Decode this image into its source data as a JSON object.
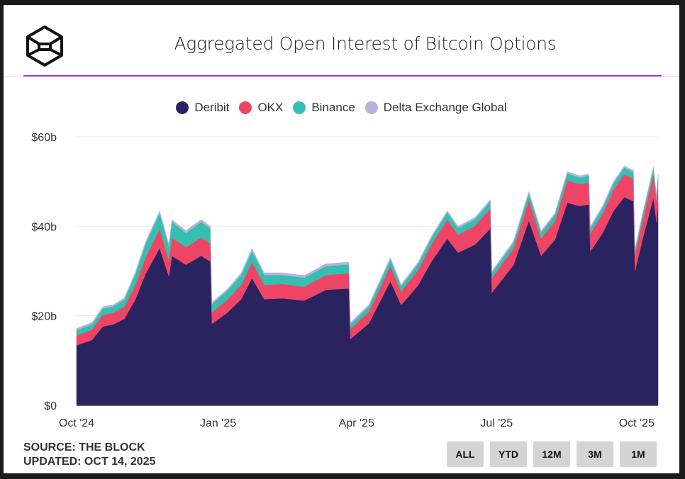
{
  "title": "Aggregated Open Interest of Bitcoin Options",
  "footer": {
    "source": "SOURCE: THE BLOCK",
    "updated": "UPDATED: OCT 14, 2025"
  },
  "range_buttons": [
    "ALL",
    "YTD",
    "12M",
    "3M",
    "1M"
  ],
  "chart_data": {
    "type": "area",
    "stacked": true,
    "title": "Aggregated Open Interest of Bitcoin Options",
    "xlabel": "",
    "ylabel": "",
    "ylim": [
      0,
      60
    ],
    "xlim": [
      "2024-10-01",
      "2025-10-14"
    ],
    "grid": true,
    "legend_position": "top-center",
    "y_ticks": [
      {
        "value": 0,
        "label": "$0"
      },
      {
        "value": 20,
        "label": "$20b"
      },
      {
        "value": 40,
        "label": "$40b"
      },
      {
        "value": 60,
        "label": "$60b"
      }
    ],
    "x_ticks": [
      {
        "date": "2024-10-01",
        "label": "Oct '24"
      },
      {
        "date": "2025-01-01",
        "label": "Jan '25"
      },
      {
        "date": "2025-04-01",
        "label": "Apr '25"
      },
      {
        "date": "2025-07-01",
        "label": "Jul '25"
      },
      {
        "date": "2025-10-01",
        "label": "Oct '25"
      }
    ],
    "x": [
      "2024-10-01",
      "2024-10-11",
      "2024-10-18",
      "2024-10-25",
      "2024-11-01",
      "2024-11-08",
      "2024-11-15",
      "2024-11-24",
      "2024-11-30",
      "2024-12-02",
      "2024-12-11",
      "2024-12-21",
      "2024-12-27",
      "2024-12-28",
      "2025-01-07",
      "2025-01-16",
      "2025-01-23",
      "2025-01-31",
      "2025-02-12",
      "2025-02-26",
      "2025-03-12",
      "2025-03-27",
      "2025-03-28",
      "2025-04-09",
      "2025-04-23",
      "2025-04-30",
      "2025-05-11",
      "2025-05-20",
      "2025-05-30",
      "2025-06-06",
      "2025-06-17",
      "2025-06-27",
      "2025-06-28",
      "2025-07-12",
      "2025-07-22",
      "2025-07-30",
      "2025-08-08",
      "2025-08-16",
      "2025-08-24",
      "2025-08-30",
      "2025-08-31",
      "2025-09-08",
      "2025-09-15",
      "2025-09-22",
      "2025-09-28",
      "2025-09-29",
      "2025-10-04",
      "2025-10-11",
      "2025-10-13",
      "2025-10-14"
    ],
    "series": [
      {
        "name": "Deribit",
        "color": "#2b2360",
        "values": [
          13.4,
          14.6,
          17.6,
          18.1,
          19.3,
          23.5,
          29.5,
          35.1,
          28.8,
          33.4,
          31.4,
          33.4,
          32.1,
          18.2,
          20.7,
          23.7,
          28.4,
          23.7,
          23.9,
          23.4,
          25.8,
          26.1,
          14.8,
          18.3,
          27.7,
          22.4,
          26.8,
          32.3,
          37.2,
          34.1,
          35.9,
          39.5,
          25.2,
          31.3,
          41.3,
          33.4,
          37,
          45.3,
          44.5,
          44.9,
          34.4,
          38.5,
          43.4,
          46.5,
          45.6,
          30,
          37.2,
          46.4,
          40.8,
          45.1
        ]
      },
      {
        "name": "OKX",
        "color": "#ef4565",
        "values": [
          2.2,
          2.3,
          2.6,
          2.6,
          2.7,
          3.2,
          3.7,
          4.3,
          3.7,
          4.1,
          3.9,
          4.1,
          4,
          2.6,
          2.9,
          3.2,
          3.6,
          3.2,
          3.2,
          3.1,
          3.3,
          3.4,
          2.3,
          2.6,
          3.4,
          3,
          3.4,
          3.8,
          4.3,
          4,
          4.2,
          4.5,
          3.2,
          3.7,
          4.6,
          3.9,
          4.2,
          5,
          4.9,
          4.9,
          4,
          4.4,
          4.8,
          5.1,
          5,
          3.6,
          4.2,
          5.1,
          4.6,
          4.9
        ]
      },
      {
        "name": "Binance",
        "color": "#35bfb0",
        "values": [
          1.2,
          1.2,
          1.4,
          1.4,
          1.6,
          2.4,
          3,
          3.5,
          3,
          3.5,
          3.2,
          3.5,
          3.4,
          1.8,
          2,
          2.2,
          2.5,
          2.2,
          2,
          2,
          2,
          2,
          1,
          1.2,
          1.5,
          1.2,
          1.4,
          1.5,
          1.6,
          1.5,
          1.5,
          1.6,
          1.2,
          1.3,
          1.5,
          1.3,
          1.4,
          1.5,
          1.5,
          1.5,
          1.2,
          1.3,
          1.4,
          1.5,
          1.5,
          1,
          1.2,
          1.4,
          1.2,
          1.3
        ]
      },
      {
        "name": "Delta Exchange Global",
        "color": "#b8b0e0",
        "values": [
          0.4,
          0.4,
          0.4,
          0.4,
          0.4,
          0.5,
          0.5,
          0.5,
          0.5,
          0.5,
          0.5,
          0.5,
          0.5,
          0.4,
          0.4,
          0.5,
          0.5,
          0.5,
          0.5,
          0.5,
          0.5,
          0.5,
          0.4,
          0.4,
          0.4,
          0.4,
          0.4,
          0.4,
          0.4,
          0.4,
          0.4,
          0.4,
          0.4,
          0.4,
          0.4,
          0.4,
          0.4,
          0.4,
          0.4,
          0.4,
          0.4,
          0.4,
          0.4,
          0.4,
          0.4,
          0.4,
          0.4,
          0.4,
          0.4,
          0.4
        ]
      }
    ]
  }
}
